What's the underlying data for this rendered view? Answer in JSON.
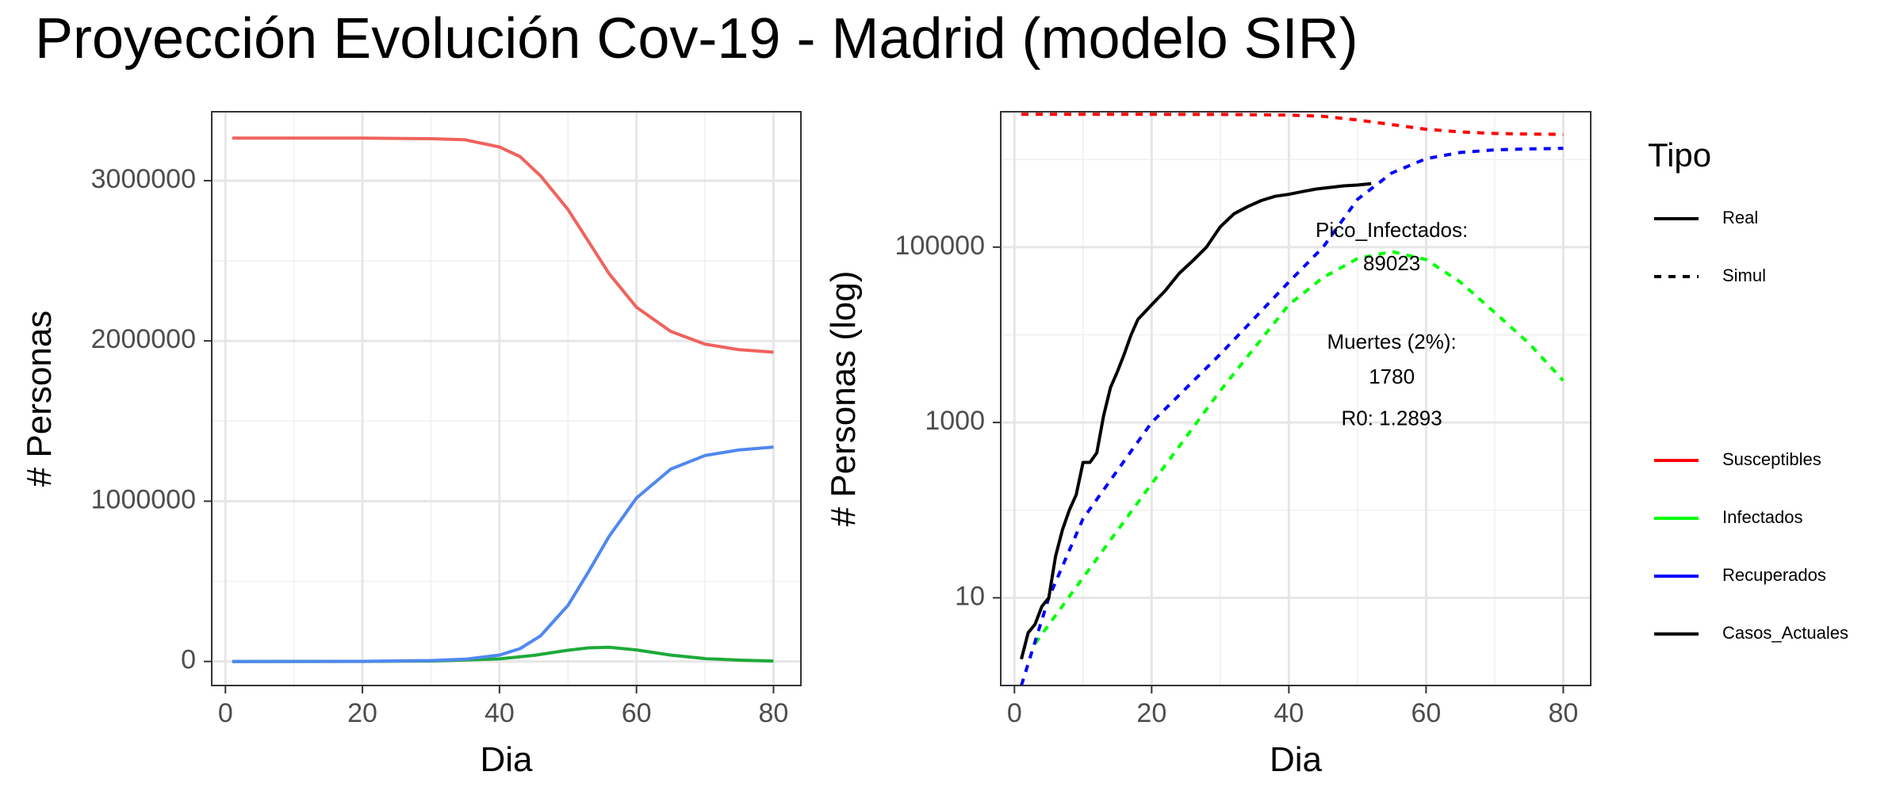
{
  "title": "Proyección Evolución Cov-19 - Madrid (modelo SIR)",
  "colors": {
    "left_susceptibles": "#F0625D",
    "left_infectados": "#1EAA39",
    "left_recuperados": "#5087F0",
    "right_susceptibles": "#FF0000",
    "right_infectados": "#00FF00",
    "right_recuperados": "#0000FF",
    "right_casos": "#000000"
  },
  "chart_data": [
    {
      "type": "line",
      "xlabel": "Dia",
      "ylabel": "# Personas",
      "xlim": [
        -2,
        84
      ],
      "ylim": [
        -150000,
        3430000
      ],
      "xticks": [
        0,
        20,
        40,
        60,
        80
      ],
      "xtick_labels": [
        "0",
        "20",
        "40",
        "60",
        "80"
      ],
      "yticks": [
        0,
        1000000,
        2000000,
        3000000
      ],
      "ytick_labels": [
        "0",
        "1000000",
        "2000000",
        "3000000"
      ],
      "grid": true,
      "legend": "none",
      "series": [
        {
          "color_key": "left_susceptibles",
          "x": [
            1,
            10,
            20,
            30,
            35,
            40,
            43,
            46,
            50,
            53,
            56,
            60,
            65,
            70,
            75,
            80
          ],
          "y": [
            3266000,
            3266000,
            3265500,
            3262000,
            3255000,
            3210000,
            3150000,
            3030000,
            2820000,
            2620000,
            2420000,
            2210000,
            2060000,
            1980000,
            1945000,
            1930000
          ]
        },
        {
          "color_key": "left_infectados",
          "x": [
            1,
            20,
            30,
            40,
            45,
            50,
            53,
            56,
            60,
            65,
            70,
            75,
            80
          ],
          "y": [
            0,
            500,
            3000,
            16000,
            38000,
            70000,
            85000,
            89000,
            72000,
            40000,
            18000,
            8000,
            3000
          ],
          "peak_label": "89023"
        },
        {
          "color_key": "left_recuperados",
          "x": [
            1,
            10,
            20,
            30,
            35,
            40,
            43,
            46,
            50,
            53,
            56,
            60,
            65,
            70,
            75,
            80
          ],
          "y": [
            0,
            100,
            1000,
            6000,
            14000,
            40000,
            80000,
            160000,
            350000,
            560000,
            780000,
            1020000,
            1200000,
            1285000,
            1320000,
            1338000
          ]
        }
      ]
    },
    {
      "type": "line",
      "xlabel": "Dia",
      "ylabel": "# Personas (log)",
      "yscale": "log",
      "xlim": [
        -2,
        84
      ],
      "ylim": [
        1,
        3500000
      ],
      "xticks": [
        0,
        20,
        40,
        60,
        80
      ],
      "xtick_labels": [
        "0",
        "20",
        "40",
        "60",
        "80"
      ],
      "yticks": [
        10,
        1000,
        100000
      ],
      "ytick_labels": [
        "10",
        "1000",
        "100000"
      ],
      "grid": true,
      "legend": "right",
      "series": [
        {
          "color_key": "right_susceptibles",
          "dash": true,
          "x": [
            1,
            10,
            20,
            30,
            40,
            45,
            50,
            55,
            60,
            65,
            70,
            75,
            80
          ],
          "y": [
            3266000,
            3266000,
            3265500,
            3262000,
            3210000,
            3100000,
            2820000,
            2500000,
            2210000,
            2060000,
            1980000,
            1945000,
            1930000
          ]
        },
        {
          "color_key": "right_infectados",
          "dash": true,
          "x": [
            3,
            10,
            20,
            30,
            40,
            45,
            50,
            55,
            60,
            65,
            70,
            75,
            80
          ],
          "y": [
            3,
            17,
            200,
            2300,
            22000,
            45000,
            74000,
            89000,
            72000,
            40000,
            18000,
            8000,
            3000
          ]
        },
        {
          "color_key": "right_recuperados",
          "dash": true,
          "x": [
            1,
            5,
            10,
            20,
            30,
            40,
            45,
            50,
            55,
            60,
            65,
            70,
            75,
            80
          ],
          "y": [
            1,
            10,
            80,
            1000,
            6000,
            40000,
            100000,
            350000,
            700000,
            1020000,
            1200000,
            1285000,
            1320000,
            1338000
          ]
        },
        {
          "color_key": "right_casos",
          "dash": false,
          "x": [
            1,
            2,
            3,
            4,
            5,
            6,
            7,
            8,
            9,
            10,
            11,
            12,
            13,
            14,
            15,
            16,
            17,
            18,
            20,
            22,
            24,
            26,
            28,
            30,
            32,
            34,
            36,
            38,
            40,
            42,
            44,
            46,
            48,
            50,
            52
          ],
          "y": [
            2,
            4,
            5,
            8,
            10,
            30,
            60,
            100,
            150,
            350,
            350,
            450,
            1200,
            2500,
            3800,
            6000,
            10000,
            15000,
            22000,
            32000,
            50000,
            70000,
            100000,
            170000,
            240000,
            290000,
            340000,
            380000,
            400000,
            430000,
            460000,
            480000,
            500000,
            510000,
            530000
          ]
        }
      ],
      "annotations": [
        {
          "text": "Pico_Infectados:",
          "x": 55,
          "y": 150000
        },
        {
          "text": "89023",
          "x": 55,
          "y": 63000
        },
        {
          "text": "Muertes (2%):",
          "x": 55,
          "y": 8000
        },
        {
          "text": "1780",
          "x": 55,
          "y": 3200
        },
        {
          "text": "R0: 1.2893",
          "x": 55,
          "y": 1070
        }
      ]
    }
  ],
  "legend": {
    "title": "Tipo",
    "linetype_items": [
      {
        "label": "Real",
        "dash": false
      },
      {
        "label": "Simul",
        "dash": true
      }
    ],
    "color_items": [
      {
        "label": "Susceptibles",
        "color_key": "right_susceptibles"
      },
      {
        "label": "Infectados",
        "color_key": "right_infectados"
      },
      {
        "label": "Recuperados",
        "color_key": "right_recuperados"
      },
      {
        "label": "Casos_Actuales",
        "color_key": "right_casos"
      }
    ]
  }
}
